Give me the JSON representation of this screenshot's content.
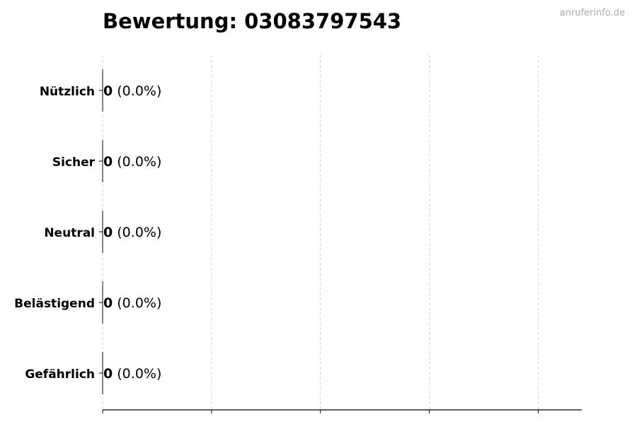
{
  "watermark": "anruferinfo.de",
  "chart_data": {
    "type": "bar",
    "orientation": "horizontal",
    "title": "Bewertung: 03083797543",
    "categories": [
      "Nützlich",
      "Sicher",
      "Neutral",
      "Belästigend",
      "Gefährlich"
    ],
    "values": [
      0,
      0,
      0,
      0,
      0
    ],
    "percents": [
      "0.0%",
      "0.0%",
      "0.0%",
      "0.0%",
      "0.0%"
    ],
    "xlim": [
      0,
      4.4
    ],
    "xticks": [
      0,
      1,
      2,
      3,
      4
    ],
    "grid": "vertical dashed",
    "bar_edge_color": "#333333",
    "grid_color": "#cccccc"
  }
}
